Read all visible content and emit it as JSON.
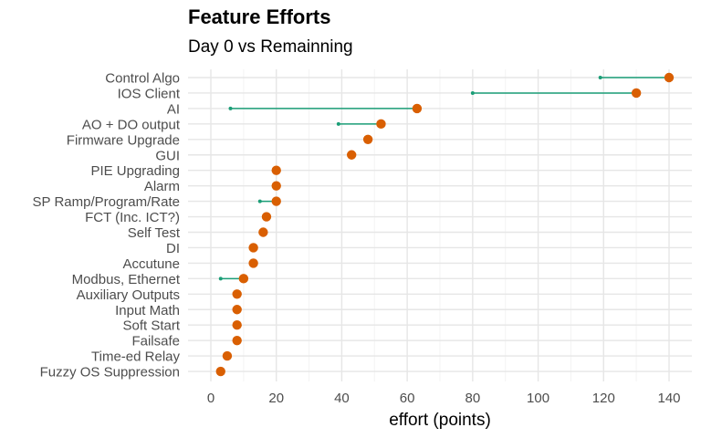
{
  "chart_data": {
    "type": "dumbbell",
    "title": "Feature Efforts",
    "subtitle": "Day 0 vs Remainning",
    "xlabel": "effort (points)",
    "ylabel": "",
    "xlim": [
      -3,
      145
    ],
    "x_ticks": [
      0,
      20,
      40,
      60,
      80,
      100,
      120,
      140
    ],
    "grid": true,
    "legend": "none",
    "categories": [
      "Control Algo",
      "IOS Client",
      "AI",
      "AO + DO output",
      "Firmware Upgrade",
      "GUI",
      "PIE Upgrading",
      "Alarm",
      "SP Ramp/Program/Rate",
      "FCT (Inc. ICT?)",
      "Self Test",
      "DI",
      "Accutune",
      "Modbus, Ethernet",
      "Auxiliary Outputs",
      "Input Math",
      "Soft Start",
      "Failsafe",
      "Time-ed Relay",
      "Fuzzy OS Suppression"
    ],
    "series": [
      {
        "values": [
          119,
          80,
          6,
          39,
          null,
          null,
          null,
          null,
          15,
          null,
          null,
          null,
          null,
          3,
          null,
          null,
          null,
          null,
          null,
          null
        ],
        "color": "#1b9e77"
      },
      {
        "values": [
          140,
          130,
          63,
          52,
          48,
          43,
          20,
          20,
          20,
          17,
          16,
          13,
          13,
          10,
          8,
          8,
          8,
          8,
          5,
          3
        ],
        "color": "#d95f02"
      }
    ]
  }
}
